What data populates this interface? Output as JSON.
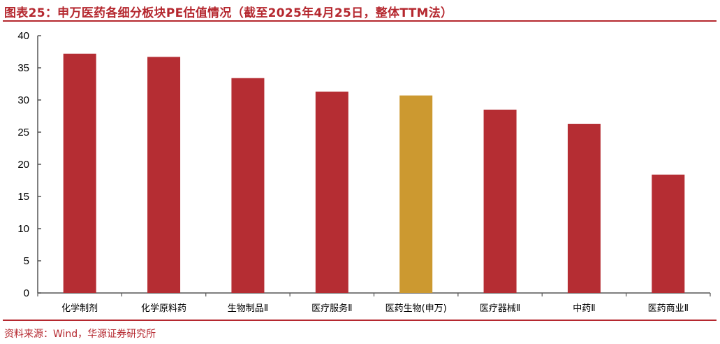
{
  "title": "图表25：申万医药各细分板块PE估值情况（截至2025年4月25日，整体TTM法）",
  "source": "资料来源：Wind，华源证券研究所",
  "colors": {
    "primary": "#b52d33",
    "highlight": "#cc9930",
    "rule": "#b5282f"
  },
  "chart_data": {
    "type": "bar",
    "categories": [
      "化学制剂",
      "化学原料药",
      "生物制品Ⅱ",
      "医疗服务Ⅱ",
      "医药生物(申万)",
      "医疗器械Ⅱ",
      "中药Ⅱ",
      "医药商业Ⅱ"
    ],
    "values": [
      37.2,
      36.7,
      33.4,
      31.3,
      30.7,
      28.5,
      26.3,
      18.4
    ],
    "highlight_category": "医药生物(申万)",
    "ylim": [
      0,
      40
    ],
    "yticks": [
      0,
      5,
      10,
      15,
      20,
      25,
      30,
      35,
      40
    ],
    "grid": false,
    "legend": "none"
  }
}
